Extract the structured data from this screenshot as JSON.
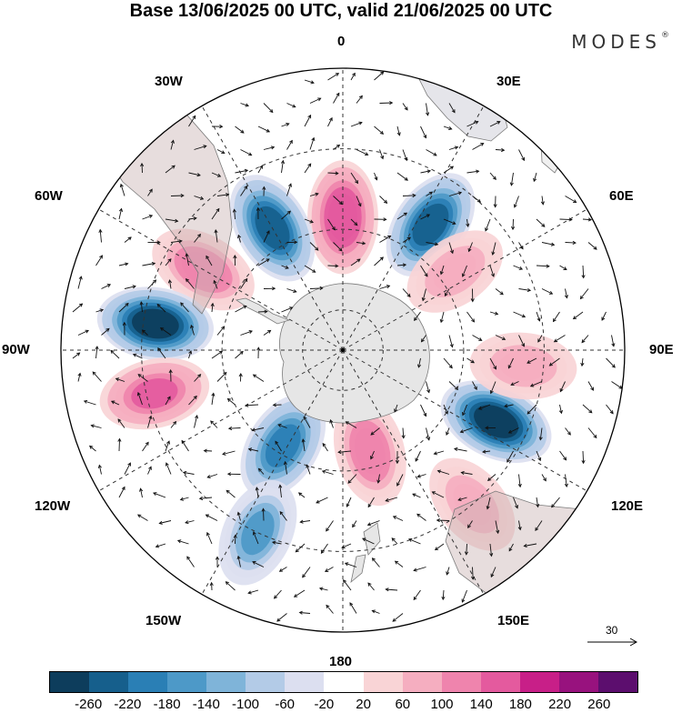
{
  "title": "Base 13/06/2025 00 UTC, valid 21/06/2025 00 UTC",
  "brand": "MODES",
  "brand_mark": "®",
  "longitude_labels": {
    "n0": "0",
    "n30e": "30E",
    "n60e": "60E",
    "n90e": "90E",
    "n120e": "120E",
    "n150e": "150E",
    "n180": "180",
    "n150w": "150W",
    "n120w": "120W",
    "n90w": "90W",
    "n60w": "60W",
    "n30w": "30W"
  },
  "reference_vector": {
    "value": "30"
  },
  "colorbar": {
    "colors": [
      "#0d3d5c",
      "#165f8c",
      "#2a7fb5",
      "#4d99c8",
      "#7fb4d9",
      "#b3cbe7",
      "#dcdff0",
      "#ffffff",
      "#f9d4d6",
      "#f5aec0",
      "#ef84ad",
      "#e45a9e",
      "#c81f88",
      "#98127e",
      "#5c0e6e"
    ],
    "ticks": [
      "-260",
      "-220",
      "-180",
      "-140",
      "-100",
      "-60",
      "-20",
      "20",
      "60",
      "100",
      "140",
      "180",
      "220",
      "260"
    ]
  },
  "anomaly_centers": [
    {
      "lon": 0,
      "lat": -57,
      "value": 180
    },
    {
      "lon": -30,
      "lat": -55,
      "value": -220
    },
    {
      "lon": 35,
      "lat": -52,
      "value": -220
    },
    {
      "lon": -60,
      "lat": -50,
      "value": 140
    },
    {
      "lon": 55,
      "lat": -56,
      "value": 100
    },
    {
      "lon": -82,
      "lat": -43,
      "value": -260
    },
    {
      "lon": -103,
      "lat": -42,
      "value": 160
    },
    {
      "lon": 115,
      "lat": -48,
      "value": -260
    },
    {
      "lon": -148,
      "lat": -62,
      "value": -180
    },
    {
      "lon": 165,
      "lat": -64,
      "value": 140
    },
    {
      "lon": -155,
      "lat": -40,
      "value": -140
    },
    {
      "lon": 140,
      "lat": -40,
      "value": 100
    },
    {
      "lon": 95,
      "lat": -45,
      "value": 100
    }
  ]
}
